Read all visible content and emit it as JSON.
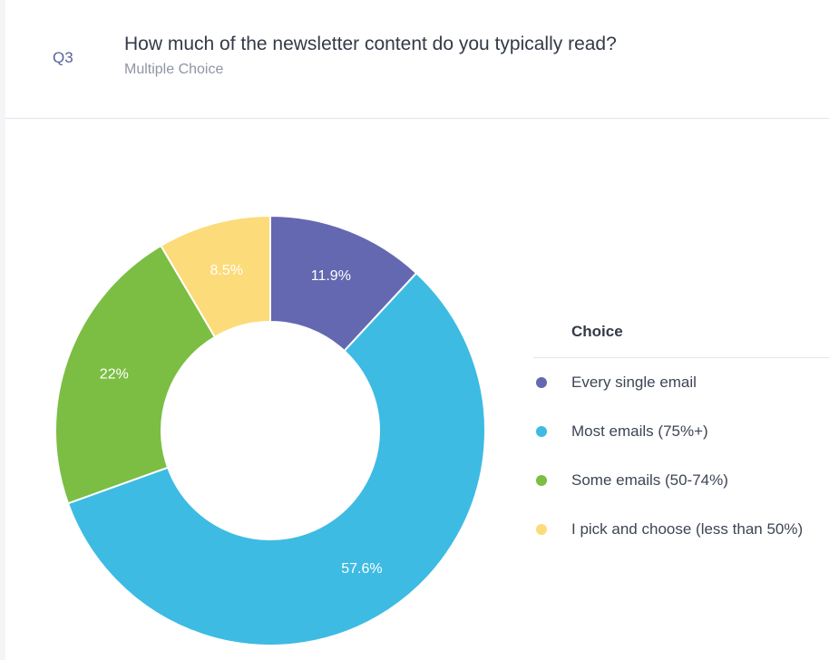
{
  "question": {
    "number": "Q3",
    "title": "How much of the newsletter content do you typically read?",
    "type": "Multiple Choice"
  },
  "chart_data": {
    "type": "pie",
    "donut": true,
    "legend_title": "Choice",
    "legend_position": "right",
    "slices": [
      {
        "label": "Every single email",
        "value": 11.9,
        "value_label": "11.9%",
        "color": "#6468b0"
      },
      {
        "label": "Most emails (75%+)",
        "value": 57.6,
        "value_label": "57.6%",
        "color": "#3dbbe3"
      },
      {
        "label": "Some emails (50-74%)",
        "value": 22,
        "value_label": "22%",
        "color": "#7bbe43"
      },
      {
        "label": "I pick and choose (less than 50%)",
        "value": 8.5,
        "value_label": "8.5%",
        "color": "#fcdb7a"
      }
    ]
  }
}
